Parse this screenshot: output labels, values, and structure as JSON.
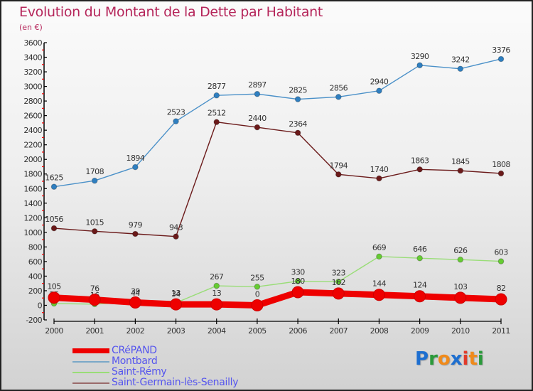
{
  "title": "Evolution du Montant de la Dette par Habitant",
  "subtitle": "(en €)",
  "logo": {
    "text": "Proxiti",
    "letters": [
      {
        "ch": "P",
        "color": "#1e6fd0"
      },
      {
        "ch": "r",
        "color": "#2a9a3a"
      },
      {
        "ch": "o",
        "color": "#f08a1a"
      },
      {
        "ch": "x",
        "color": "#1e6fd0"
      },
      {
        "ch": "i",
        "color": "#e23a2a"
      },
      {
        "ch": "t",
        "color": "#f08a1a"
      },
      {
        "ch": "i",
        "color": "#2a9a3a"
      }
    ]
  },
  "chart_data": {
    "type": "line",
    "title": "Evolution du Montant de la Dette par Habitant",
    "subtitle": "(en €)",
    "xlabel": "",
    "ylabel": "",
    "ylim": [
      -200,
      3600
    ],
    "ytick_step": 200,
    "grid": false,
    "legend_position": "bottom-left",
    "x": [
      "2000",
      "2001",
      "2002",
      "2003",
      "2004",
      "2005",
      "2006",
      "2007",
      "2008",
      "2009",
      "2010",
      "2011"
    ],
    "series": [
      {
        "name": "Saint-Germain-lès-Senailly",
        "color": "#6b1a1a",
        "legend_color": "#9a6a6a",
        "width": "thin",
        "values": [
          1056,
          1015,
          979,
          943,
          2512,
          2440,
          2364,
          1794,
          1740,
          1863,
          1845,
          1808
        ]
      },
      {
        "name": "Montbard",
        "color": "#4a90c8",
        "legend_color": "#7aa8c8",
        "marker_color": "#2f7fc0",
        "width": "thin",
        "values": [
          1625,
          1708,
          1894,
          2523,
          2877,
          2897,
          2825,
          2856,
          2940,
          3290,
          3242,
          3376
        ]
      },
      {
        "name": "Saint-Rémy",
        "color": "#99dd77",
        "legend_color": "#99dd77",
        "marker_color": "#66cc33",
        "width": "thin",
        "values": [
          25,
          16,
          44,
          34,
          267,
          255,
          330,
          323,
          669,
          646,
          626,
          603
        ]
      },
      {
        "name": "CRéPAND",
        "color": "#ee0000",
        "legend_color": "#ee0000",
        "width": "thick",
        "values": [
          105,
          76,
          39,
          13,
          13,
          0,
          180,
          162,
          144,
          124,
          103,
          82
        ]
      }
    ],
    "legend_order": [
      "CRéPAND",
      "Montbard",
      "Saint-Rémy",
      "Saint-Germain-lès-Senailly"
    ]
  }
}
